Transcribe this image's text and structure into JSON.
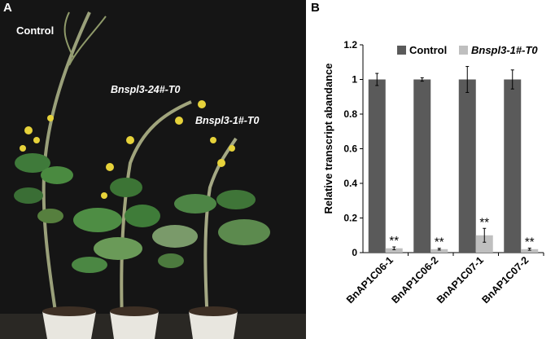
{
  "panel_a": {
    "label": "A",
    "background_color": "#151515",
    "annotations": [
      {
        "text": "Control",
        "style": "normal"
      },
      {
        "text": "Bnspl3-24#-T0",
        "style": "italic-part"
      },
      {
        "text": "Bnspl3-1#-T0",
        "style": "italic-part"
      }
    ]
  },
  "chart_data": {
    "panel_label": "B",
    "type": "bar",
    "title": "",
    "ylabel": "Relative transcript abandance",
    "xlabel": "",
    "categories": [
      "BnAP1C06-1",
      "BnAP1C06-2",
      "BnAP1C07-1",
      "BnAP1C07-2"
    ],
    "series": [
      {
        "name": "Control",
        "values": [
          1.0,
          1.0,
          1.0,
          1.0
        ],
        "errors": [
          0.035,
          0.01,
          0.075,
          0.055
        ],
        "color": "#5a5a5a"
      },
      {
        "name": "Bnspl3-1#-T0",
        "values": [
          0.025,
          0.02,
          0.1,
          0.02
        ],
        "errors": [
          0.008,
          0.005,
          0.04,
          0.006
        ],
        "color": "#bfbfbf"
      }
    ],
    "significance": [
      "**",
      "**",
      "**",
      "**"
    ],
    "ylim": [
      0,
      1.2
    ],
    "yticks": [
      "0",
      "0.2",
      "0.4",
      "0.6",
      "0.8",
      "1",
      "1.2"
    ],
    "grid": false,
    "legend_position": "top"
  }
}
